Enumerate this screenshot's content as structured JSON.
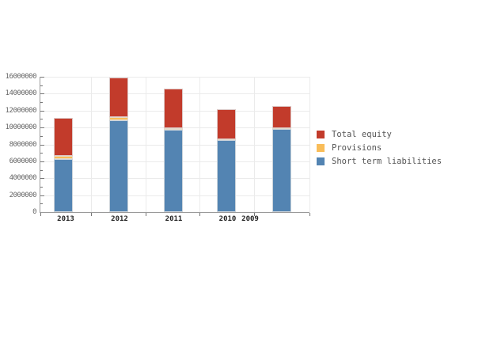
{
  "chart_data": {
    "type": "bar",
    "stacked": true,
    "title": "",
    "xlabel": "",
    "ylabel": "",
    "categories": [
      "2013",
      "2012",
      "2011",
      "2010",
      "2009"
    ],
    "series": [
      {
        "name": "Short term liabilities",
        "color": "#5384b2",
        "values": [
          6300000,
          10900000,
          9700000,
          8550000,
          9850000
        ]
      },
      {
        "name": "Provisions",
        "color": "#f9bd59",
        "values": [
          300000,
          350000,
          250000,
          100000,
          100000
        ]
      },
      {
        "name": "Total equity",
        "color": "#c23b2b",
        "values": [
          4500000,
          4650000,
          4650000,
          3550000,
          2550000
        ]
      }
    ],
    "stack_totals": [
      11100000,
      15900000,
      14600000,
      12200000,
      12500000
    ],
    "y_axis": {
      "min": 0,
      "max": 16000000,
      "major_step": 2000000,
      "minor_step": 1000000,
      "tick_labels": [
        "0",
        "2000000",
        "4000000",
        "6000000",
        "8000000",
        "10000000",
        "12000000",
        "14000000",
        "16000000"
      ]
    },
    "grid": true,
    "legend": {
      "position": "right",
      "items": [
        {
          "label": "Total equity",
          "color": "#c23b2b"
        },
        {
          "label": "Provisions",
          "color": "#f9bd59"
        },
        {
          "label": "Short term liabilities",
          "color": "#5384b2"
        }
      ]
    },
    "colors": {
      "grid": "#ebebeb",
      "axis": "#9a9a9a",
      "tick": "#777777",
      "y_label_text": "#666666",
      "x_label_text": "#222222",
      "legend_text": "#555555",
      "background": "#ffffff"
    }
  }
}
